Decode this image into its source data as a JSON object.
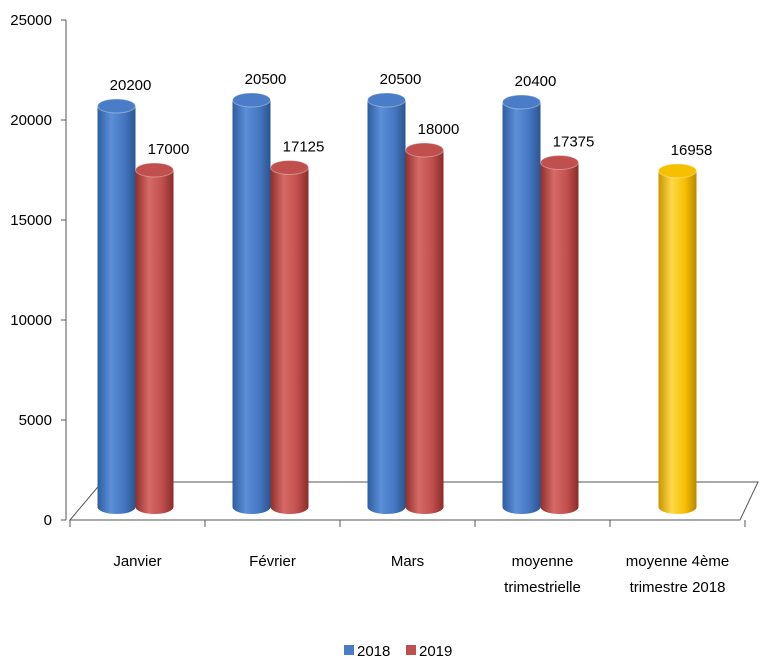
{
  "chart_data": {
    "type": "bar",
    "categories": [
      [
        "Janvier"
      ],
      [
        "Février"
      ],
      [
        "Mars"
      ],
      [
        "moyenne",
        "trimestrielle"
      ],
      [
        "moyenne 4ème",
        "trimestre 2018"
      ]
    ],
    "series": [
      {
        "name": "2018",
        "color": "#4a7cc7",
        "values": [
          20200,
          20500,
          20500,
          20400,
          null
        ]
      },
      {
        "name": "2019",
        "color": "#c0504d",
        "values": [
          17000,
          17125,
          18000,
          17375,
          null
        ]
      },
      {
        "name": "",
        "color": "#f5c000",
        "values": [
          null,
          null,
          null,
          null,
          16958
        ]
      }
    ],
    "data_labels": [
      [
        "20200",
        "20500",
        "20500",
        "20400",
        null
      ],
      [
        "17000",
        "17125",
        "18000",
        "17375",
        null
      ],
      [
        null,
        null,
        null,
        null,
        "16958"
      ]
    ],
    "yticks": [
      0,
      5000,
      10000,
      15000,
      20000,
      25000
    ],
    "ylim": [
      0,
      25000
    ],
    "legend": {
      "position": "bottom",
      "entries": [
        "2018",
        "2019"
      ]
    },
    "grid": false
  }
}
